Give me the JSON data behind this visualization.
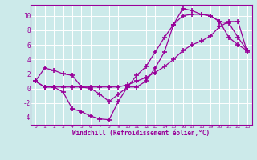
{
  "title": "",
  "xlabel": "Windchill (Refroidissement éolien,°C)",
  "ylabel": "",
  "bg_color": "#cceaea",
  "grid_color": "#aacccc",
  "line_color": "#990099",
  "marker_color": "#990099",
  "xlim": [
    -0.5,
    23.5
  ],
  "ylim": [
    -5.0,
    11.5
  ],
  "xticks": [
    0,
    1,
    2,
    3,
    4,
    5,
    6,
    7,
    8,
    9,
    10,
    11,
    12,
    13,
    14,
    15,
    16,
    17,
    18,
    19,
    20,
    21,
    22,
    23
  ],
  "yticks": [
    -4,
    -2,
    0,
    2,
    4,
    6,
    8,
    10
  ],
  "series": [
    {
      "x": [
        0,
        1,
        2,
        3,
        4,
        5,
        6,
        7,
        8,
        9,
        10,
        11,
        12,
        13,
        14,
        15,
        16,
        17,
        18,
        19,
        20,
        21,
        22,
        23
      ],
      "y": [
        1,
        0.2,
        0.2,
        -0.5,
        -2.8,
        -3.2,
        -3.8,
        -4.2,
        -4.3,
        -1.8,
        0.2,
        0.2,
        1.0,
        2.8,
        5.0,
        8.8,
        11.0,
        10.7,
        10.2,
        10.0,
        9.2,
        9.0,
        7.0,
        5.2
      ]
    },
    {
      "x": [
        0,
        1,
        2,
        3,
        4,
        5,
        6,
        7,
        8,
        9,
        10,
        11,
        12,
        13,
        14,
        15,
        16,
        17,
        18,
        19,
        20,
        21,
        22,
        23
      ],
      "y": [
        1,
        2.8,
        2.5,
        2.0,
        1.8,
        0.2,
        0.0,
        -0.8,
        -1.8,
        -0.8,
        0.2,
        1.8,
        3.0,
        5.0,
        7.0,
        8.8,
        10.0,
        10.2,
        10.2,
        10.0,
        9.2,
        7.0,
        6.0,
        5.2
      ]
    },
    {
      "x": [
        0,
        1,
        2,
        3,
        4,
        5,
        6,
        7,
        8,
        9,
        10,
        11,
        12,
        13,
        14,
        15,
        16,
        17,
        18,
        19,
        20,
        21,
        22,
        23
      ],
      "y": [
        1,
        0.2,
        0.2,
        0.2,
        0.2,
        0.2,
        0.2,
        0.2,
        0.2,
        0.2,
        0.5,
        1.0,
        1.5,
        2.2,
        3.0,
        4.0,
        5.2,
        6.0,
        6.5,
        7.2,
        8.5,
        9.2,
        9.2,
        5.0
      ]
    }
  ]
}
